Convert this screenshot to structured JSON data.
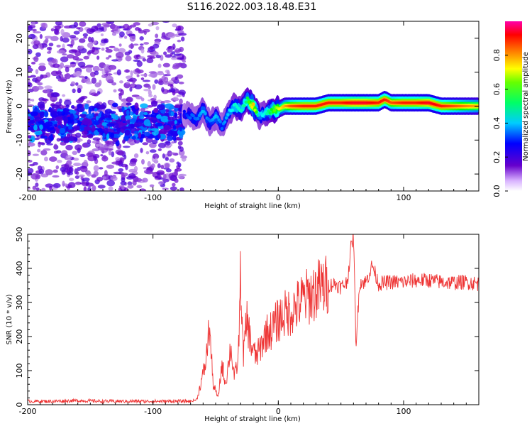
{
  "figure_title": "S116.2022.003.18.48.E31",
  "chart_data": [
    {
      "type": "heatmap",
      "xlabel": "Height of straight line (km)",
      "ylabel": "Frequency (Hz)",
      "xlim": [
        -200,
        160
      ],
      "ylim": [
        -25,
        25
      ],
      "x_ticks": [
        -200,
        -100,
        0,
        100
      ],
      "x_tick_labels": [
        "-200",
        "-100",
        "0",
        "100"
      ],
      "y_ticks": [
        -20,
        -10,
        0,
        10,
        20
      ],
      "y_tick_labels": [
        "-20",
        "-10",
        "0",
        "10",
        "20"
      ],
      "colorbar": {
        "label": "Normalized spectral amplitude",
        "range": [
          0,
          1
        ],
        "ticks": [
          0.0,
          0.2,
          0.4,
          0.6,
          0.8
        ],
        "tick_labels": [
          "0.0",
          "0.2",
          "0.4",
          "0.6",
          "0.8"
        ],
        "colormap": [
          "#ffffff",
          "#6600cc",
          "#0000ff",
          "#00ffff",
          "#00ff00",
          "#ffff00",
          "#ff8000",
          "#ff0000",
          "#ff00aa"
        ]
      },
      "ridge": {
        "x": [
          -75,
          -70,
          -65,
          -60,
          -55,
          -50,
          -45,
          -40,
          -35,
          -30,
          -25,
          -20,
          -15,
          -10,
          -5,
          0,
          5,
          10,
          20,
          30,
          40,
          50,
          60,
          70,
          80,
          85,
          90,
          100,
          110,
          120,
          130,
          140,
          150,
          160
        ],
        "y": [
          -2,
          -3,
          -4,
          -1,
          -5,
          -3,
          -6,
          -2,
          0,
          -1,
          2,
          0,
          -3,
          -2,
          -1,
          -1,
          0,
          0,
          0,
          0,
          1,
          1,
          1,
          1,
          1,
          2,
          1,
          1,
          1,
          1,
          0,
          0,
          0,
          0
        ],
        "peak_amplitude": [
          0.25,
          0.3,
          0.3,
          0.35,
          0.3,
          0.35,
          0.3,
          0.35,
          0.4,
          0.4,
          0.45,
          0.7,
          0.35,
          0.4,
          0.5,
          0.6,
          0.7,
          0.8,
          0.85,
          0.85,
          0.85,
          0.85,
          0.9,
          0.9,
          0.85,
          0.85,
          0.8,
          0.85,
          0.85,
          0.9,
          0.85,
          0.8,
          0.75,
          0.7
        ]
      },
      "noise_region_x": [
        -200,
        -75
      ],
      "noise_band_y": [
        -5,
        5
      ]
    },
    {
      "type": "line",
      "xlabel": "Height of straight line (km)",
      "ylabel": "SNR (10 * v/v)",
      "xlim": [
        -200,
        160
      ],
      "ylim": [
        0,
        500
      ],
      "x_ticks": [
        -200,
        -100,
        0,
        100
      ],
      "x_tick_labels": [
        "-200",
        "-100",
        "0",
        "100"
      ],
      "y_ticks": [
        0,
        100,
        200,
        300,
        400,
        500
      ],
      "y_tick_labels": [
        "0",
        "100",
        "200",
        "300",
        "400",
        "500"
      ],
      "color": "#ee3333",
      "series": [
        {
          "x": [
            -200,
            -180,
            -160,
            -140,
            -120,
            -100,
            -80,
            -70,
            -65,
            -62,
            -58,
            -55,
            -52,
            -48,
            -45,
            -42,
            -38,
            -35,
            -32,
            -30,
            -28,
            -25,
            -22,
            -18,
            -15,
            -10,
            -5,
            0,
            5,
            10,
            15,
            20,
            25,
            30,
            35,
            40,
            45,
            50,
            55,
            58,
            60,
            62,
            65,
            70,
            75,
            80,
            90,
            100,
            110,
            120,
            130,
            140,
            150,
            160
          ],
          "y": [
            10,
            10,
            12,
            10,
            10,
            10,
            10,
            10,
            15,
            60,
            120,
            230,
            60,
            20,
            120,
            60,
            170,
            80,
            130,
            390,
            140,
            250,
            180,
            140,
            160,
            210,
            220,
            250,
            265,
            275,
            290,
            310,
            320,
            335,
            345,
            350,
            355,
            345,
            360,
            460,
            500,
            175,
            360,
            360,
            410,
            355,
            360,
            360,
            365,
            365,
            360,
            358,
            360,
            355
          ]
        }
      ]
    }
  ]
}
